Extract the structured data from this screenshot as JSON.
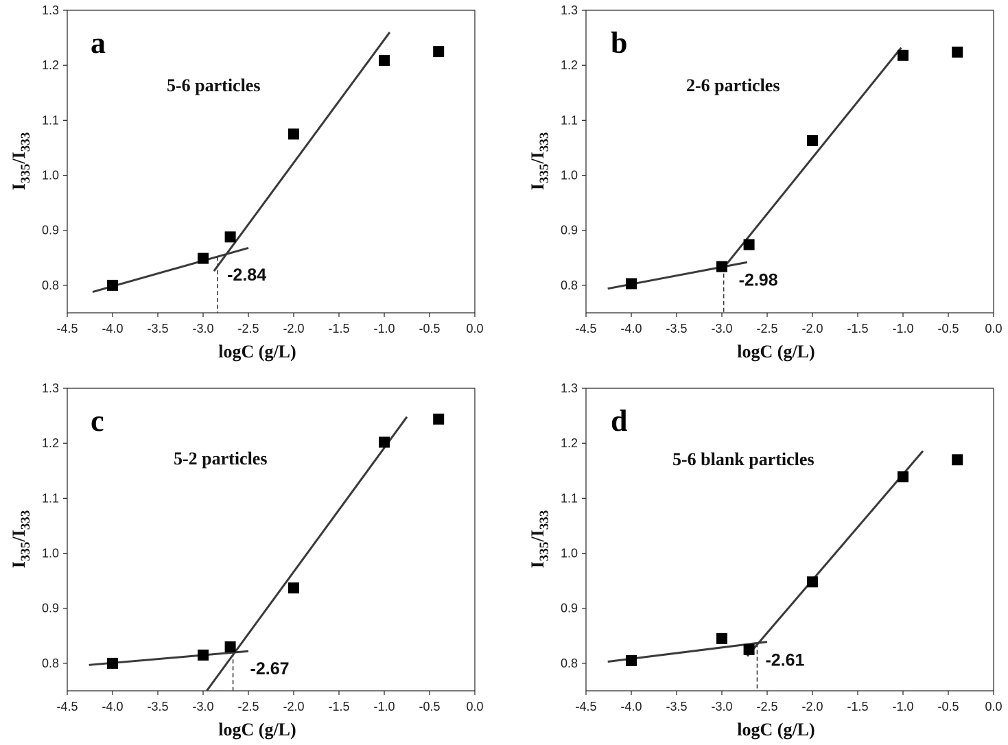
{
  "colors": {
    "marker": "#000000",
    "fit_line": "#3a3a3a",
    "axis": "#222222"
  },
  "chart_data": [
    {
      "type": "scatter",
      "panel_label": "a",
      "title": "5-6 particles",
      "xlabel": "logC (g/L)",
      "ylabel_main": "I",
      "ylabel_sub1": "335",
      "ylabel_sep": "/I",
      "ylabel_sub2": "333",
      "xlim": [
        -4.5,
        0.0
      ],
      "ylim": [
        0.75,
        1.3
      ],
      "xticks": [
        "-4.5",
        "-4.0",
        "-3.5",
        "-3.0",
        "-2.5",
        "-2.0",
        "-1.5",
        "-1.0",
        "-0.5",
        "0.0"
      ],
      "yticks": [
        "0.8",
        "0.9",
        "1.0",
        "1.1",
        "1.2",
        "1.3"
      ],
      "points": [
        [
          -4.0,
          0.8
        ],
        [
          -3.0,
          0.849
        ],
        [
          -2.7,
          0.888
        ],
        [
          -2.0,
          1.075
        ],
        [
          -1.0,
          1.209
        ],
        [
          -0.4,
          1.225
        ]
      ],
      "fit_lines": [
        [
          [
            -4.22,
            0.788
          ],
          [
            -2.5,
            0.868
          ]
        ],
        [
          [
            -2.88,
            0.826
          ],
          [
            -0.94,
            1.26
          ]
        ]
      ],
      "intersection_x": -2.84,
      "annotation": "-2.84"
    },
    {
      "type": "scatter",
      "panel_label": "b",
      "title": "2-6 particles",
      "xlabel": "logC (g/L)",
      "ylabel_main": "I",
      "ylabel_sub1": "335",
      "ylabel_sep": "/I",
      "ylabel_sub2": "333",
      "xlim": [
        -4.5,
        0.0
      ],
      "ylim": [
        0.75,
        1.3
      ],
      "xticks": [
        "-4.5",
        "-4.0",
        "-3.5",
        "-3.0",
        "-2.5",
        "-2.0",
        "-1.5",
        "-1.0",
        "-0.5",
        "0.0"
      ],
      "yticks": [
        "0.8",
        "0.9",
        "1.0",
        "1.1",
        "1.2",
        "1.3"
      ],
      "points": [
        [
          -4.0,
          0.803
        ],
        [
          -3.0,
          0.834
        ],
        [
          -2.7,
          0.874
        ],
        [
          -2.0,
          1.063
        ],
        [
          -1.0,
          1.218
        ],
        [
          -0.4,
          1.224
        ]
      ],
      "fit_lines": [
        [
          [
            -4.26,
            0.794
          ],
          [
            -2.72,
            0.842
          ]
        ],
        [
          [
            -2.98,
            0.832
          ],
          [
            -1.02,
            1.232
          ]
        ]
      ],
      "intersection_x": -2.98,
      "annotation": "-2.98"
    },
    {
      "type": "scatter",
      "panel_label": "c",
      "title": "5-2 particles",
      "xlabel": "logC (g/L)",
      "ylabel_main": "I",
      "ylabel_sub1": "335",
      "ylabel_sep": "/I",
      "ylabel_sub2": "333",
      "xlim": [
        -4.5,
        0.0
      ],
      "ylim": [
        0.75,
        1.3
      ],
      "xticks": [
        "-4.5",
        "-4.0",
        "-3.5",
        "-3.0",
        "-2.5",
        "-2.0",
        "-1.5",
        "-1.0",
        "-0.5",
        "0.0"
      ],
      "yticks": [
        "0.8",
        "0.9",
        "1.0",
        "1.1",
        "1.2",
        "1.3"
      ],
      "points": [
        [
          -4.0,
          0.8
        ],
        [
          -3.0,
          0.815
        ],
        [
          -2.7,
          0.83
        ],
        [
          -2.0,
          0.937
        ],
        [
          -1.0,
          1.202
        ],
        [
          -0.4,
          1.244
        ]
      ],
      "fit_lines": [
        [
          [
            -4.26,
            0.797
          ],
          [
            -2.5,
            0.822
          ]
        ],
        [
          [
            -2.96,
            0.75
          ],
          [
            -0.75,
            1.248
          ]
        ]
      ],
      "intersection_x": -2.67,
      "annotation": "-2.67"
    },
    {
      "type": "scatter",
      "panel_label": "d",
      "title": "5-6 blank particles",
      "xlabel": "logC (g/L)",
      "ylabel_main": "I",
      "ylabel_sub1": "335",
      "ylabel_sep": "/I",
      "ylabel_sub2": "333",
      "xlim": [
        -4.5,
        0.0
      ],
      "ylim": [
        0.75,
        1.3
      ],
      "xticks": [
        "-4.5",
        "-4.0",
        "-3.5",
        "-3.0",
        "-2.5",
        "-2.0",
        "-1.5",
        "-1.0",
        "-0.5",
        "0.0"
      ],
      "yticks": [
        "0.8",
        "0.9",
        "1.0",
        "1.1",
        "1.2",
        "1.3"
      ],
      "points": [
        [
          -4.0,
          0.805
        ],
        [
          -3.0,
          0.845
        ],
        [
          -2.7,
          0.825
        ],
        [
          -2.0,
          0.948
        ],
        [
          -1.0,
          1.139
        ],
        [
          -0.4,
          1.17
        ]
      ],
      "fit_lines": [
        [
          [
            -4.26,
            0.803
          ],
          [
            -2.5,
            0.839
          ]
        ],
        [
          [
            -2.72,
            0.813
          ],
          [
            -0.78,
            1.186
          ]
        ]
      ],
      "intersection_x": -2.61,
      "annotation": "-2.61"
    }
  ]
}
